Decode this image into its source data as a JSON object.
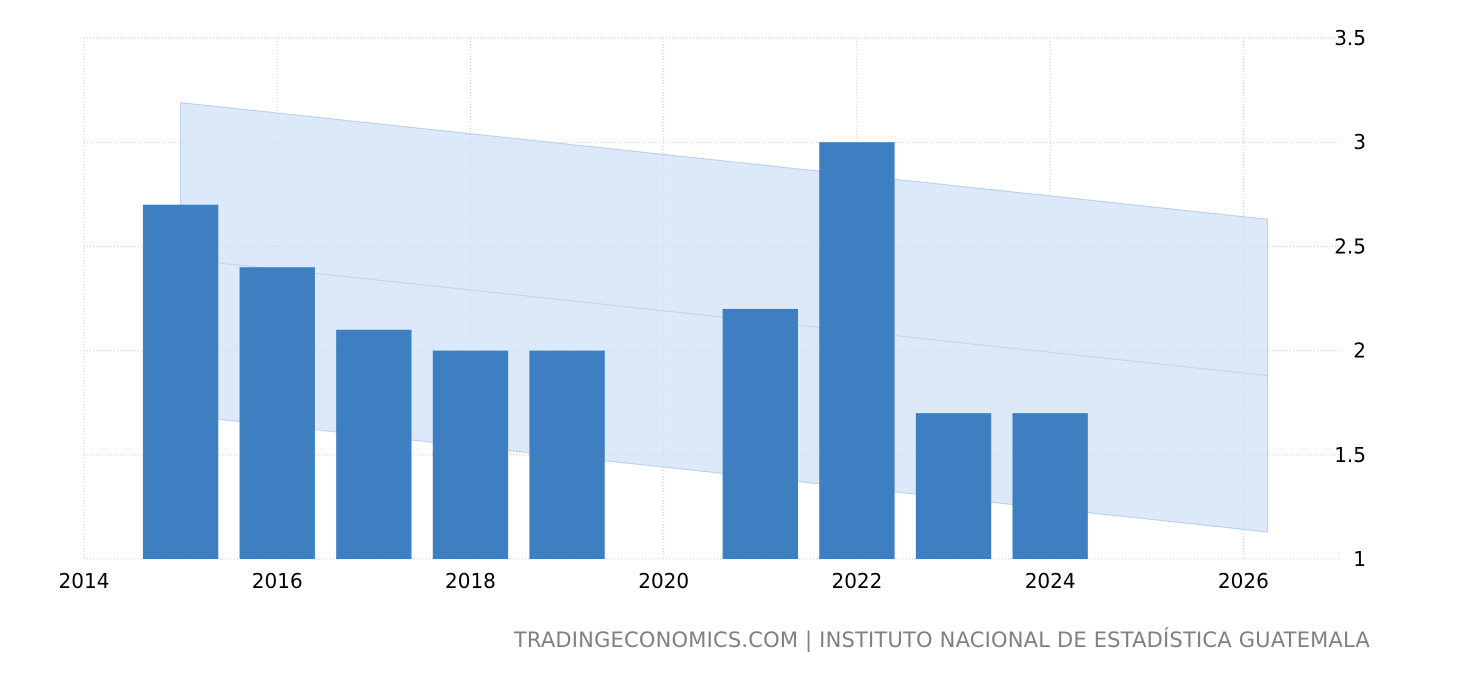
{
  "chart_data": {
    "type": "bar",
    "x": [
      2015,
      2016,
      2017,
      2018,
      2019,
      2021,
      2022,
      2023,
      2024
    ],
    "values": [
      2.7,
      2.4,
      2.1,
      2.0,
      2.0,
      2.2,
      3.0,
      1.7,
      1.7
    ],
    "xlim": [
      2014,
      2027
    ],
    "ylim": [
      1,
      3.5
    ],
    "x_ticks": [
      "2014",
      "2016",
      "2018",
      "2020",
      "2022",
      "2024",
      "2026"
    ],
    "y_ticks": [
      "1",
      "1.5",
      "2",
      "2.5",
      "3",
      "3.5"
    ],
    "y_axis_side": "right",
    "grid": true,
    "trend_band": {
      "x": [
        2015,
        2026.25
      ],
      "upper": [
        3.19,
        2.63
      ],
      "center": [
        2.44,
        1.88
      ],
      "lower": [
        1.69,
        1.13
      ]
    },
    "colors": {
      "bar": "#3e7fc1",
      "band": "#cfe0f7",
      "grid": "#cccccc"
    }
  },
  "footer": {
    "source_text": "TRADINGECONOMICS.COM | INSTITUTO NACIONAL DE ESTADÍSTICA GUATEMALA"
  }
}
